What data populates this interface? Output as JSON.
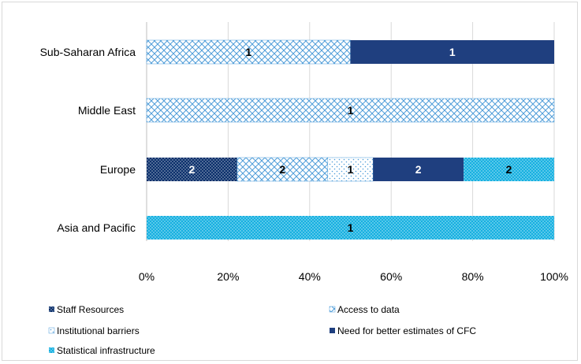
{
  "chart_data": {
    "type": "bar",
    "orientation": "horizontal",
    "stacked": "percent",
    "categories": [
      "Sub-Saharan Africa",
      "Middle East",
      "Europe",
      "Asia and Pacific"
    ],
    "series": [
      {
        "name": "Staff Resources",
        "values": [
          0,
          0,
          2,
          0
        ],
        "color": "#0a2f6b",
        "pattern": "dots-dense"
      },
      {
        "name": "Access to data",
        "values": [
          1,
          1,
          2,
          0
        ],
        "color": "#4f9dd9",
        "pattern": "crosshatch"
      },
      {
        "name": "Institutional barriers",
        "values": [
          0,
          0,
          1,
          0
        ],
        "color": "#4f9dd9",
        "pattern": "dots-sparse"
      },
      {
        "name": "Need for better estimates of CFC",
        "values": [
          1,
          0,
          2,
          0
        ],
        "color": "#1f3f7f",
        "pattern": "solid"
      },
      {
        "name": "Statistical infrastructure",
        "values": [
          0,
          0,
          2,
          1
        ],
        "color": "#16b0e0",
        "pattern": "dots-light"
      }
    ],
    "xlim": [
      0,
      100
    ],
    "x_ticks": [
      "0%",
      "20%",
      "40%",
      "60%",
      "80%",
      "100%"
    ],
    "grid": "vertical",
    "legend": "bottom"
  }
}
